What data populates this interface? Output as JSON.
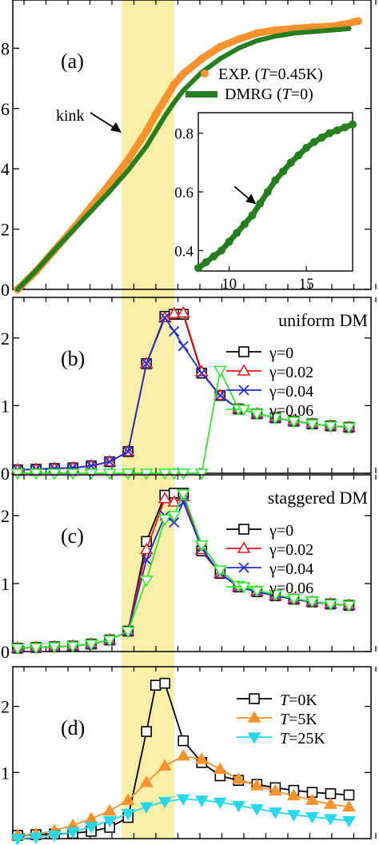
{
  "chart_data": [
    {
      "panel": "a",
      "type": "scatter",
      "panel_label": "(a)",
      "ylim": [
        0,
        9.6
      ],
      "xlim": [
        0,
        18.5
      ],
      "yticks": [
        0,
        2,
        4,
        6,
        8
      ],
      "ytick_labels": [
        "0",
        "2",
        "4",
        "6",
        "8"
      ],
      "highlight_band": [
        6.9,
        10.1
      ],
      "annotation": "kink",
      "legend": [
        {
          "pre": "EXP. (",
          "var": "T",
          "post": "=0.45K)",
          "color": "#f7922d",
          "marker": "circle"
        },
        {
          "pre": "DMRG (",
          "var": "T",
          "post": "=0)",
          "color": "#267f1f",
          "marker": "line"
        }
      ],
      "series": [
        {
          "name": "EXP.",
          "color": "#f7922d",
          "x": [
            0,
            1,
            2,
            3,
            4,
            5,
            6,
            7,
            7.5,
            8,
            8.5,
            9,
            10,
            11,
            12,
            13,
            14,
            15,
            16,
            17,
            17.6,
            18,
            18.3,
            18.5
          ],
          "y": [
            0,
            0.6,
            1.3,
            2.0,
            2.75,
            3.5,
            4.3,
            5.25,
            5.8,
            6.3,
            6.8,
            7.15,
            7.65,
            8.05,
            8.3,
            8.5,
            8.6,
            8.65,
            8.7,
            8.72,
            8.78,
            8.82,
            8.88,
            8.9
          ]
        },
        {
          "name": "DMRG",
          "color": "#267f1f",
          "x": [
            0,
            1,
            2,
            3,
            4,
            5,
            6,
            7,
            7.5,
            8,
            8.5,
            9,
            10,
            11,
            12,
            13,
            14,
            15,
            16,
            17,
            18
          ],
          "y": [
            0,
            0.62,
            1.3,
            1.95,
            2.6,
            3.25,
            3.95,
            4.75,
            5.25,
            5.75,
            6.2,
            6.6,
            7.2,
            7.65,
            8.0,
            8.25,
            8.4,
            8.5,
            8.55,
            8.6,
            8.65
          ]
        }
      ],
      "inset": {
        "xlim": [
          8,
          18
        ],
        "ylim": [
          0.33,
          0.87
        ],
        "xticks": [
          10,
          15
        ],
        "xtick_labels": [
          "10",
          "15"
        ],
        "yticks": [
          0.4,
          0.6,
          0.8
        ],
        "ytick_labels": [
          "0.4",
          "0.6",
          "0.8"
        ],
        "arrow_at": [
          11.9,
          0.55
        ],
        "series": {
          "color": "#267f1f",
          "x": [
            8,
            8.5,
            9,
            9.5,
            10,
            10.5,
            11,
            11.5,
            12,
            12.5,
            13,
            13.5,
            14,
            14.5,
            15,
            15.5,
            16,
            16.5,
            17,
            17.5,
            18
          ],
          "y": [
            0.34,
            0.36,
            0.38,
            0.4,
            0.43,
            0.46,
            0.49,
            0.52,
            0.56,
            0.6,
            0.64,
            0.67,
            0.7,
            0.725,
            0.75,
            0.77,
            0.785,
            0.8,
            0.81,
            0.82,
            0.83
          ]
        }
      }
    },
    {
      "panel": "b",
      "type": "line",
      "panel_label": "(b)",
      "legend_title": "uniform DM",
      "ylim": [
        0,
        2.6
      ],
      "yticks": [
        0,
        1,
        2
      ],
      "ytick_labels": [
        "0",
        "1",
        "2"
      ],
      "series": [
        {
          "name": "γ=0",
          "color": "#000000",
          "marker": "square",
          "x": [
            0,
            1,
            2,
            3,
            4,
            5,
            6,
            7,
            8,
            8.5,
            9,
            10,
            11,
            12,
            13,
            14,
            15,
            16,
            17,
            18
          ],
          "y": [
            0.05,
            0.06,
            0.07,
            0.08,
            0.11,
            0.17,
            0.32,
            1.62,
            2.32,
            2.35,
            2.35,
            1.48,
            1.15,
            0.95,
            0.88,
            0.82,
            0.77,
            0.73,
            0.7,
            0.68
          ]
        },
        {
          "name": "γ=0.02",
          "color": "#e41a1c",
          "marker": "triangle-up",
          "x": [
            0,
            1,
            2,
            3,
            4,
            5,
            6,
            7,
            8,
            8.5,
            9,
            10,
            11,
            12,
            13,
            14,
            15,
            16,
            17,
            18
          ],
          "y": [
            0.05,
            0.06,
            0.07,
            0.08,
            0.11,
            0.17,
            0.32,
            1.62,
            2.3,
            2.36,
            2.37,
            1.5,
            1.15,
            0.95,
            0.88,
            0.82,
            0.77,
            0.73,
            0.7,
            0.68
          ]
        },
        {
          "name": "γ=0.04",
          "color": "#1f2fd0",
          "marker": "x",
          "x": [
            0,
            1,
            2,
            3,
            4,
            5,
            6,
            7,
            8,
            8.5,
            9,
            10,
            11,
            12,
            13,
            14,
            15,
            16,
            17,
            18
          ],
          "y": [
            0.05,
            0.06,
            0.07,
            0.08,
            0.11,
            0.17,
            0.32,
            1.62,
            2.3,
            2.1,
            1.88,
            1.48,
            1.15,
            0.95,
            0.88,
            0.82,
            0.77,
            0.73,
            0.7,
            0.68
          ]
        },
        {
          "name": "γ=0.06",
          "color": "#2ee82e",
          "marker": "triangle-down",
          "x": [
            0,
            1,
            2,
            3,
            4,
            5,
            6,
            7,
            8,
            8.5,
            9,
            10,
            11,
            12,
            13,
            14,
            15,
            16,
            17,
            18
          ],
          "y": [
            0,
            0,
            0,
            0,
            0,
            0,
            0,
            0,
            0,
            0,
            0,
            0,
            1.52,
            0.95,
            0.88,
            0.82,
            0.77,
            0.73,
            0.7,
            0.68
          ]
        }
      ]
    },
    {
      "panel": "c",
      "type": "line",
      "panel_label": "(c)",
      "legend_title": "staggered DM",
      "ylim": [
        0,
        2.6
      ],
      "yticks": [
        0,
        1,
        2
      ],
      "ytick_labels": [
        "0",
        "1",
        "2"
      ],
      "series": [
        {
          "name": "γ=0",
          "color": "#000000",
          "marker": "square",
          "x": [
            0,
            1,
            2,
            3,
            4,
            5,
            6,
            7,
            8,
            8.5,
            9,
            10,
            11,
            12,
            13,
            14,
            15,
            16,
            17,
            18
          ],
          "y": [
            0.05,
            0.06,
            0.07,
            0.08,
            0.11,
            0.17,
            0.3,
            1.62,
            2.3,
            2.33,
            2.33,
            1.48,
            1.15,
            0.95,
            0.88,
            0.82,
            0.77,
            0.73,
            0.7,
            0.68
          ]
        },
        {
          "name": "γ=0.02",
          "color": "#e41a1c",
          "marker": "triangle-up",
          "x": [
            0,
            1,
            2,
            3,
            4,
            5,
            6,
            7,
            8,
            8.5,
            9,
            10,
            11,
            12,
            13,
            14,
            15,
            16,
            17,
            18
          ],
          "y": [
            0.05,
            0.06,
            0.07,
            0.08,
            0.11,
            0.17,
            0.3,
            1.5,
            2.25,
            2.2,
            2.28,
            1.5,
            1.15,
            0.95,
            0.88,
            0.82,
            0.77,
            0.73,
            0.7,
            0.68
          ]
        },
        {
          "name": "γ=0.04",
          "color": "#1f2fd0",
          "marker": "x",
          "x": [
            0,
            1,
            2,
            3,
            4,
            5,
            6,
            7,
            8,
            8.5,
            9,
            10,
            11,
            12,
            13,
            14,
            15,
            16,
            17,
            18
          ],
          "y": [
            0.05,
            0.06,
            0.07,
            0.08,
            0.11,
            0.17,
            0.3,
            1.35,
            2.0,
            1.9,
            2.2,
            1.52,
            1.15,
            0.95,
            0.88,
            0.82,
            0.77,
            0.73,
            0.7,
            0.68
          ]
        },
        {
          "name": "γ=0.06",
          "color": "#2ee82e",
          "marker": "triangle-down",
          "x": [
            0,
            1,
            2,
            3,
            4,
            5,
            6,
            7,
            8,
            8.5,
            9,
            10,
            11,
            12,
            13,
            14,
            15,
            16,
            17,
            18
          ],
          "y": [
            0.05,
            0.06,
            0.07,
            0.08,
            0.11,
            0.17,
            0.3,
            1.05,
            1.95,
            2.0,
            2.32,
            1.57,
            1.2,
            0.97,
            0.9,
            0.84,
            0.78,
            0.74,
            0.7,
            0.68
          ]
        }
      ]
    },
    {
      "panel": "d",
      "type": "line",
      "panel_label": "(d)",
      "ylim": [
        0,
        2.6
      ],
      "yticks": [
        1,
        2
      ],
      "ytick_labels": [
        "1",
        "2"
      ],
      "series": [
        {
          "name": "T=0K",
          "label_var": "T",
          "label_post": "=0K",
          "color": "#000000",
          "marker": "square",
          "x": [
            0,
            1,
            2,
            3,
            4,
            5,
            6,
            7,
            7.5,
            8,
            9,
            10,
            11,
            12,
            13,
            14,
            15,
            16,
            17,
            18
          ],
          "y": [
            0.05,
            0.06,
            0.07,
            0.08,
            0.11,
            0.17,
            0.32,
            1.62,
            2.32,
            2.35,
            1.48,
            1.15,
            0.95,
            0.88,
            0.82,
            0.77,
            0.73,
            0.7,
            0.68,
            0.66
          ]
        },
        {
          "name": "T=5K",
          "label_var": "T",
          "label_post": "=5K",
          "color": "#f7922d",
          "marker": "triangle-up",
          "x": [
            0,
            1,
            2,
            3,
            4,
            5,
            6,
            7,
            8,
            9,
            10,
            11,
            12,
            13,
            14,
            15,
            16,
            17,
            18
          ],
          "y": [
            0.05,
            0.07,
            0.12,
            0.2,
            0.3,
            0.42,
            0.58,
            0.85,
            1.1,
            1.25,
            1.2,
            1.05,
            0.9,
            0.8,
            0.72,
            0.65,
            0.58,
            0.52,
            0.48
          ]
        },
        {
          "name": "T=25K",
          "label_var": "T",
          "label_post": "=25K",
          "color": "#27d8ea",
          "marker": "triangle-down",
          "x": [
            0,
            1,
            2,
            3,
            4,
            5,
            6,
            7,
            8,
            9,
            10,
            11,
            12,
            13,
            14,
            15,
            16,
            17,
            18
          ],
          "y": [
            0.0,
            0.02,
            0.05,
            0.1,
            0.18,
            0.27,
            0.38,
            0.48,
            0.56,
            0.6,
            0.58,
            0.55,
            0.5,
            0.45,
            0.4,
            0.36,
            0.33,
            0.3,
            0.27
          ]
        }
      ]
    }
  ]
}
